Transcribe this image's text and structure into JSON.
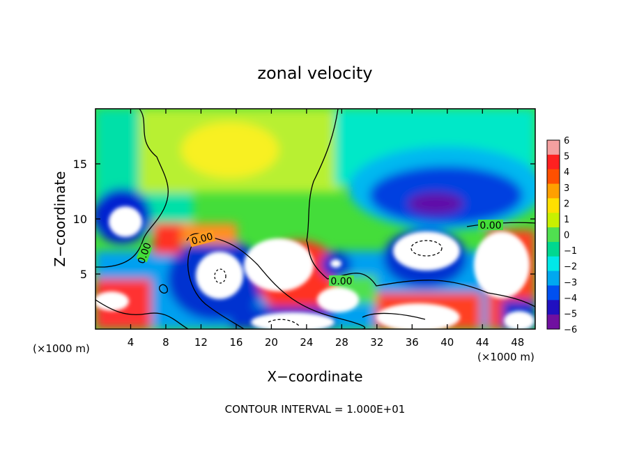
{
  "chart_data": {
    "type": "heatmap",
    "title": "zonal velocity",
    "xlabel": "X−coordinate",
    "ylabel": "Z−coordinate",
    "x_unit": "(×1000 m)",
    "y_unit": "(×1000 m)",
    "xlim": [
      0,
      50
    ],
    "ylim": [
      0,
      20
    ],
    "x_ticks": [
      4,
      8,
      12,
      16,
      20,
      24,
      28,
      32,
      36,
      40,
      44,
      48
    ],
    "x_tick_labels": [
      "4",
      "8",
      "12",
      "16",
      "20",
      "24",
      "28",
      "32",
      "36",
      "40",
      "44",
      "48"
    ],
    "y_ticks": [
      5,
      10,
      15
    ],
    "y_tick_labels": [
      "5",
      "10",
      "15"
    ],
    "colorbar": {
      "range": [
        -6,
        6
      ],
      "tick_labels": [
        "6",
        "5",
        "4",
        "3",
        "2",
        "1",
        "0",
        "−1",
        "−2",
        "−3",
        "−4",
        "−5",
        "−6"
      ],
      "colors": [
        "#f4a0a0",
        "#ff2020",
        "#ff5000",
        "#ffa000",
        "#ffe000",
        "#c8f000",
        "#50e050",
        "#00d890",
        "#00e8e8",
        "#00a8f0",
        "#0050f0",
        "#2010c0",
        "#7010a0"
      ]
    },
    "contour_labels": [
      "0.00",
      "0.00",
      "0.00",
      "0.00"
    ],
    "footer": "CONTOUR INTERVAL = 1.000E+01",
    "background": "#30e030"
  }
}
